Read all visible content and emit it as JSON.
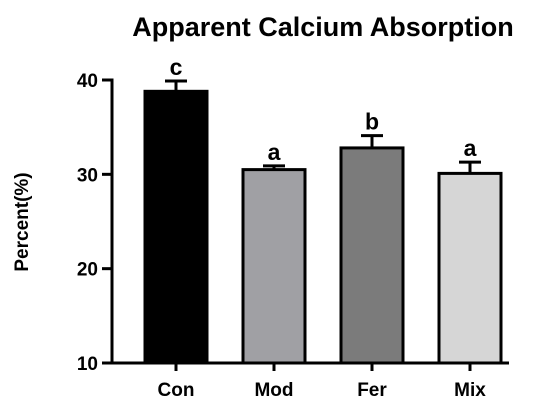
{
  "chart_data": {
    "type": "bar",
    "title": "Apparent Calcium Absorption",
    "ylabel": "Percent(%)",
    "xlabel": "",
    "ylim": [
      10,
      40
    ],
    "yticks": [
      10,
      20,
      30,
      40
    ],
    "categories": [
      "Con",
      "Mod",
      "Fer",
      "Mix"
    ],
    "values": [
      38.8,
      30.5,
      32.8,
      30.1
    ],
    "errors": [
      1.1,
      0.4,
      1.3,
      1.2
    ],
    "significance": [
      "c",
      "a",
      "b",
      "a"
    ],
    "colors": [
      "#000000",
      "#a0a0a4",
      "#7b7b7b",
      "#d6d6d6"
    ],
    "grid": false,
    "legend": "none"
  }
}
